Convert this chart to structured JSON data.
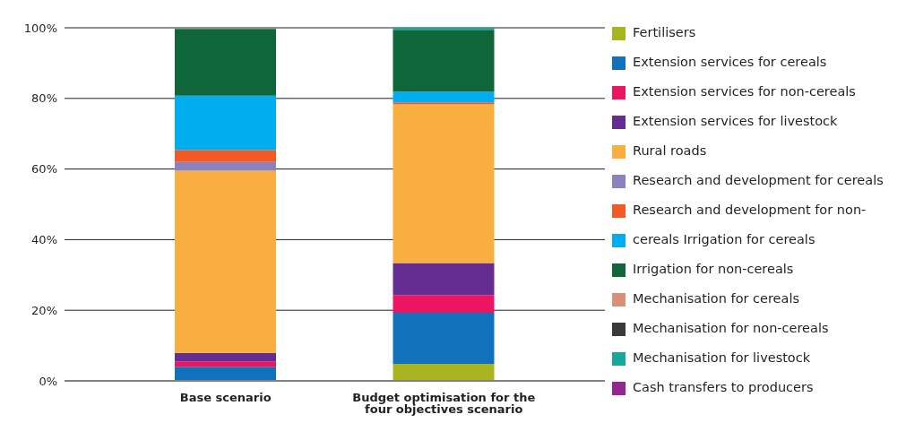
{
  "chart_data": {
    "type": "bar",
    "stacked": true,
    "categories": [
      "Base scenario",
      "Budget optimisation for the four objectives scenario"
    ],
    "series": [
      {
        "name": "Fertilisers",
        "color": "#a9b51e",
        "values": [
          0,
          4.8
        ]
      },
      {
        "name": "Extension services for cereals",
        "color": "#1172bb",
        "values": [
          4.0,
          14.5
        ]
      },
      {
        "name": "Extension services for non-cereals",
        "color": "#ec1561",
        "values": [
          1.5,
          5.0
        ]
      },
      {
        "name": "Extension services for livestock",
        "color": "#662d91",
        "values": [
          2.4,
          9.1
        ]
      },
      {
        "name": "Rural roads",
        "color": "#f9ae40",
        "values": [
          51.6,
          44.9
        ]
      },
      {
        "name": "Research and development for cereals",
        "color": "#8a83bf",
        "values": [
          2.5,
          0
        ]
      },
      {
        "name": "Research and development for non-",
        "color": "#f15a24",
        "values": [
          3.4,
          0.6
        ]
      },
      {
        "name": "cereals Irrigation for cereals",
        "color": "#00aeef",
        "values": [
          15.4,
          3.0
        ]
      },
      {
        "name": "Irrigation for non-cereals",
        "color": "#0f6638",
        "values": [
          18.9,
          17.5
        ]
      },
      {
        "name": "Mechanisation for cereals",
        "color": "#d99077",
        "values": [
          0,
          0
        ]
      },
      {
        "name": "Mechanisation for non-cereals",
        "color": "#3a3a3a",
        "values": [
          0,
          0
        ]
      },
      {
        "name": "Mechanisation for livestock",
        "color": "#17a89a",
        "values": [
          0,
          0.8
        ]
      },
      {
        "name": "Cash transfers to producers",
        "color": "#92278f",
        "values": [
          0,
          0
        ]
      }
    ],
    "ylim": [
      0,
      100
    ],
    "yticks": [
      {
        "value": 0,
        "label": "0%"
      },
      {
        "value": 20,
        "label": "20%"
      },
      {
        "value": 40,
        "label": "40%"
      },
      {
        "value": 60,
        "label": "60%"
      },
      {
        "value": 80,
        "label": "80%"
      },
      {
        "value": 100,
        "label": "100%"
      }
    ],
    "grid": "y",
    "legend": "right"
  }
}
